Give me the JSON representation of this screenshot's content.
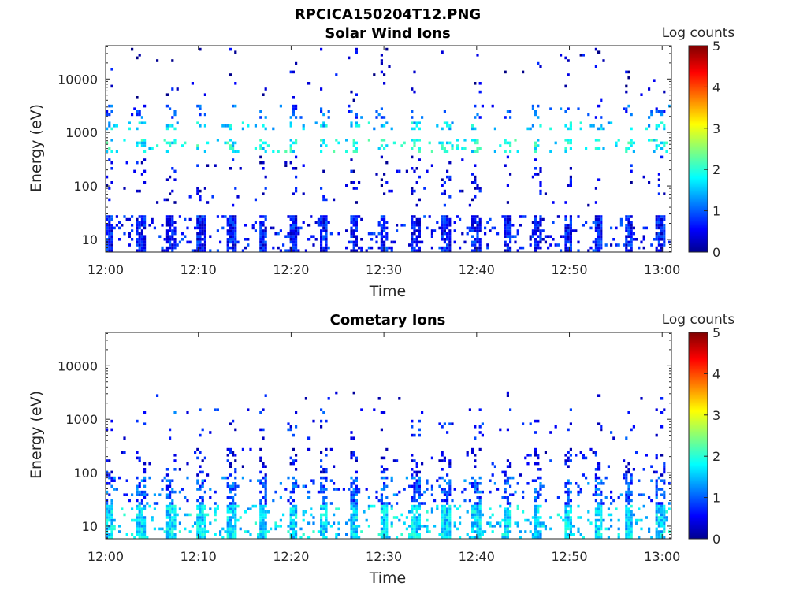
{
  "figure": {
    "title": "RPCICA150204T12.PNG"
  },
  "colormap": "jet",
  "chart_data": [
    {
      "type": "heatmap",
      "title": "Solar Wind Ions",
      "xlabel": "Time",
      "ylabel": "Energy (eV)",
      "x_tick_labels": [
        "12:00",
        "12:10",
        "12:20",
        "12:30",
        "12:40",
        "12:50",
        "13:00"
      ],
      "x_range_minutes": [
        0,
        61
      ],
      "y_scale": "log",
      "y_tick_values": [
        10,
        100,
        1000,
        10000
      ],
      "y_tick_labels": [
        "10",
        "100",
        "1000",
        "10000"
      ],
      "y_range": [
        5.8,
        42000
      ],
      "colorbar": {
        "label": "Log counts",
        "range": [
          0,
          5
        ],
        "tick_labels": [
          "0",
          "1",
          "2",
          "3",
          "4",
          "5"
        ]
      },
      "sweep_period_minutes": 3.3,
      "bands": [
        {
          "energy": [
            6,
            28
          ],
          "level": 0.6,
          "density": 0.85
        },
        {
          "energy": [
            450,
            850
          ],
          "level": 1.8,
          "density": 0.45
        },
        {
          "energy": [
            1200,
            1700
          ],
          "level": 1.6,
          "density": 0.35
        },
        {
          "energy": [
            2000,
            3500
          ],
          "level": 0.9,
          "density": 0.2
        },
        {
          "energy": [
            40,
            400
          ],
          "level": 0.4,
          "density": 0.12
        },
        {
          "energy": [
            4000,
            42000
          ],
          "level": 0.3,
          "density": 0.05
        }
      ]
    },
    {
      "type": "heatmap",
      "title": "Cometary Ions",
      "xlabel": "Time",
      "ylabel": "Energy (eV)",
      "x_tick_labels": [
        "12:00",
        "12:10",
        "12:20",
        "12:30",
        "12:40",
        "12:50",
        "13:00"
      ],
      "x_range_minutes": [
        0,
        61
      ],
      "y_scale": "log",
      "y_tick_values": [
        10,
        100,
        1000,
        10000
      ],
      "y_tick_labels": [
        "10",
        "100",
        "1000",
        "10000"
      ],
      "y_range": [
        5.8,
        42000
      ],
      "colorbar": {
        "label": "Log counts",
        "range": [
          0,
          5
        ],
        "tick_labels": [
          "0",
          "1",
          "2",
          "3",
          "4",
          "5"
        ]
      },
      "sweep_period_minutes": 3.3,
      "bands": [
        {
          "energy": [
            6,
            25
          ],
          "level": 1.6,
          "density": 0.9
        },
        {
          "energy": [
            25,
            90
          ],
          "level": 0.9,
          "density": 0.55
        },
        {
          "energy": [
            90,
            300
          ],
          "level": 0.5,
          "density": 0.22
        },
        {
          "energy": [
            450,
            1000
          ],
          "level": 0.6,
          "density": 0.12
        },
        {
          "energy": [
            1300,
            1700
          ],
          "level": 0.8,
          "density": 0.12
        },
        {
          "energy": [
            2500,
            3500
          ],
          "level": 0.4,
          "density": 0.05
        }
      ]
    }
  ]
}
